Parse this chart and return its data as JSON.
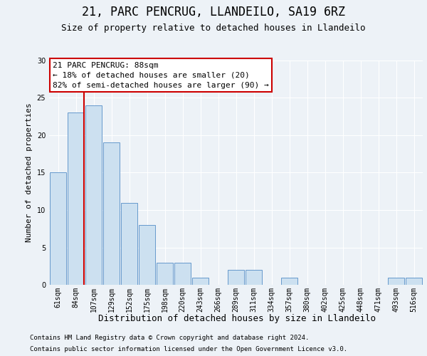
{
  "title1": "21, PARC PENCRUG, LLANDEILO, SA19 6RZ",
  "title2": "Size of property relative to detached houses in Llandeilo",
  "xlabel": "Distribution of detached houses by size in Llandeilo",
  "ylabel": "Number of detached properties",
  "categories": [
    "61sqm",
    "84sqm",
    "107sqm",
    "129sqm",
    "152sqm",
    "175sqm",
    "198sqm",
    "220sqm",
    "243sqm",
    "266sqm",
    "289sqm",
    "311sqm",
    "334sqm",
    "357sqm",
    "380sqm",
    "402sqm",
    "425sqm",
    "448sqm",
    "471sqm",
    "493sqm",
    "516sqm"
  ],
  "values": [
    15,
    23,
    24,
    19,
    11,
    8,
    3,
    3,
    1,
    0,
    2,
    2,
    0,
    1,
    0,
    0,
    0,
    0,
    0,
    1,
    1
  ],
  "bar_color": "#cce0f0",
  "bar_edgecolor": "#6699cc",
  "vline_color": "#cc0000",
  "vline_position": 1.5,
  "annotation_line1": "21 PARC PENCRUG: 88sqm",
  "annotation_line2": "← 18% of detached houses are smaller (20)",
  "annotation_line3": "82% of semi-detached houses are larger (90) →",
  "annotation_box_facecolor": "#ffffff",
  "annotation_box_edgecolor": "#cc0000",
  "ylim": [
    0,
    30
  ],
  "yticks": [
    0,
    5,
    10,
    15,
    20,
    25,
    30
  ],
  "footer1": "Contains HM Land Registry data © Crown copyright and database right 2024.",
  "footer2": "Contains public sector information licensed under the Open Government Licence v3.0.",
  "fig_facecolor": "#edf2f7",
  "plot_facecolor": "#edf2f7",
  "grid_color": "#ffffff",
  "title1_fontsize": 12,
  "title2_fontsize": 9,
  "ylabel_fontsize": 8,
  "xlabel_fontsize": 9,
  "tick_fontsize": 7,
  "annot_fontsize": 8,
  "footer_fontsize": 6.5
}
